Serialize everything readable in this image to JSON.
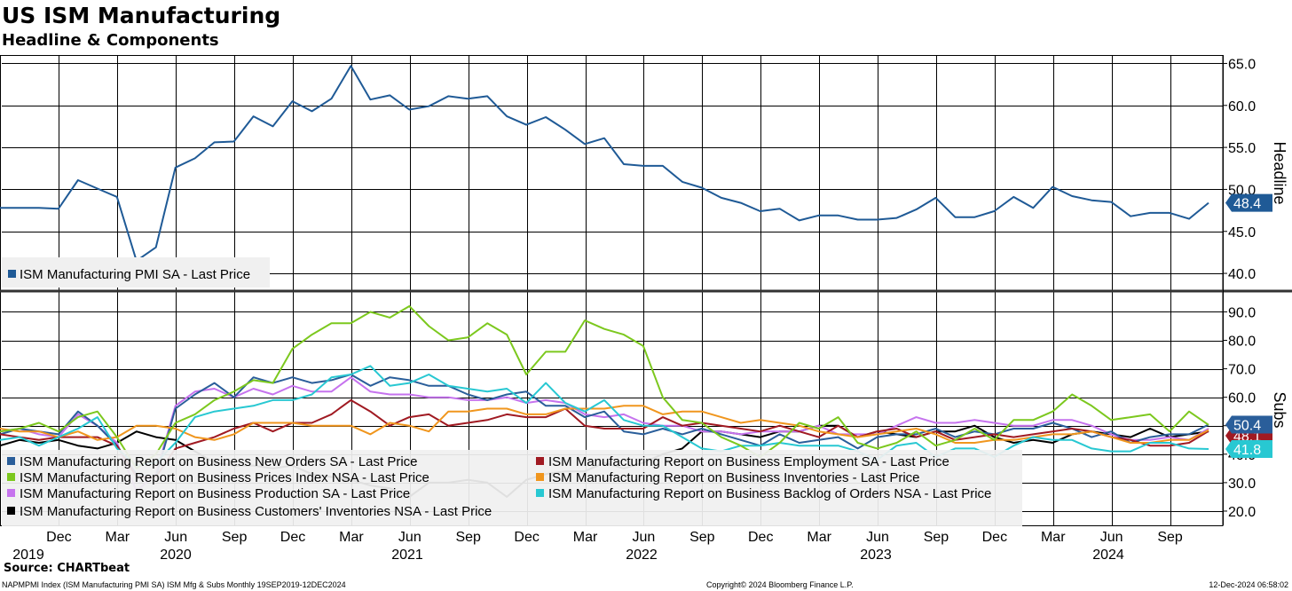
{
  "header": {
    "title": "US ISM Manufacturing",
    "subtitle": "Headline & Components"
  },
  "footer": {
    "source": "Source: CHARTbeat",
    "left_note": "NAPMPMI Index (ISM Manufacturing PMI SA) ISM Mfg & Subs  Monthly 19SEP2019-12DEC2024",
    "center_note": "Copyright© 2024 Bloomberg Finance L.P.",
    "right_note": "12-Dec-2024 06:58:02"
  },
  "colors": {
    "headline": "#1f5a96",
    "new_orders": "#2a5e9a",
    "employment": "#a01a22",
    "prices": "#7cc81e",
    "inventories": "#f0961e",
    "production": "#c673ee",
    "backlog": "#28c8d2",
    "customers_inventories": "#000000",
    "customers_inventories_old": "#777777"
  },
  "chart_data": [
    {
      "type": "line",
      "panel": "Headline",
      "axis_label": "Headline",
      "ylim": [
        38,
        66
      ],
      "y_ticks": [
        "65.0",
        "60.0",
        "55.0",
        "50.0",
        "45.0",
        "40.0"
      ],
      "last_value_label": "48.4",
      "legend": [
        "ISM Manufacturing PMI SA - Last Price"
      ],
      "series": [
        {
          "name": "ISM Manufacturing PMI SA - Last Price",
          "color_key": "headline",
          "values": [
            47.8,
            47.8,
            47.8,
            47.7,
            51.1,
            50.1,
            49.1,
            41.5,
            43.1,
            52.6,
            53.7,
            55.6,
            55.7,
            58.7,
            57.5,
            60.5,
            59.3,
            60.8,
            64.7,
            60.7,
            61.2,
            59.5,
            59.9,
            61.1,
            60.8,
            61.1,
            58.7,
            57.7,
            58.6,
            57.1,
            55.4,
            56.1,
            53.0,
            52.8,
            52.8,
            50.9,
            50.2,
            49.0,
            48.4,
            47.4,
            47.7,
            46.3,
            46.9,
            46.9,
            46.4,
            46.4,
            46.6,
            47.6,
            49.0,
            46.7,
            46.7,
            47.4,
            49.1,
            47.8,
            50.3,
            49.2,
            48.7,
            48.5,
            46.8,
            47.2,
            47.2,
            46.5,
            48.4
          ]
        }
      ]
    },
    {
      "type": "line",
      "panel": "Subs",
      "axis_label": "Subs",
      "ylim": [
        15,
        97
      ],
      "y_ticks": [
        "90.0",
        "80.0",
        "70.0",
        "60.0",
        "50.0",
        "40.0",
        "30.0",
        "20.0"
      ],
      "last_value_labels": [
        "50.4",
        "48.1",
        "41.8"
      ],
      "x_month_ticks": [
        "Dec",
        "Mar",
        "Jun",
        "Sep",
        "Dec",
        "Mar",
        "Jun",
        "Sep",
        "Dec",
        "Mar",
        "Jun",
        "Sep",
        "Dec",
        "Mar",
        "Jun",
        "Sep",
        "Dec",
        "Mar",
        "Jun",
        "Sep"
      ],
      "x_year_labels": [
        "2019",
        "2020",
        "2021",
        "2022",
        "2023",
        "2024"
      ],
      "legend": [
        "ISM Manufacturing Report on Business New Orders SA - Last Price",
        "ISM Manufacturing Report on Business Employment SA - Last Price",
        "ISM Manufacturing Report on Business Prices Index NSA - Last Price",
        "ISM Manufacturing Report on Business Inventories - Last Price",
        "ISM Manufacturing Report on Business Production SA - Last Price",
        "ISM Manufacturing Report on Business Backlog of Orders NSA - Last Price",
        "ISM Manufacturing Report on Business Customers' Inventories NSA - Last Price"
      ],
      "series": [
        {
          "name": "ISM Manufacturing Report on Business New Orders SA - Last Price",
          "color_key": "new_orders",
          "values": [
            47.0,
            49.0,
            48.0,
            47.0,
            55.0,
            50.0,
            43.0,
            33.0,
            32.0,
            56.0,
            61.0,
            65.0,
            60.0,
            67.0,
            65.0,
            67.0,
            65.0,
            66.0,
            68.0,
            64.0,
            67.0,
            66.0,
            64.0,
            64.0,
            61.0,
            59.0,
            61.0,
            62.0,
            57.0,
            57.0,
            53.0,
            55.0,
            48.0,
            47.0,
            49.0,
            47.0,
            49.0,
            47.0,
            45.0,
            43.0,
            47.0,
            44.0,
            45.0,
            46.0,
            42.0,
            46.0,
            47.0,
            47.0,
            49.0,
            46.0,
            48.0,
            47.0,
            49.0,
            49.0,
            51.0,
            49.0,
            46.0,
            48.0,
            44.0,
            46.0,
            47.0,
            47.0,
            50.4
          ]
        },
        {
          "name": "ISM Manufacturing Report on Business Employment SA - Last Price",
          "color_key": "employment",
          "values": [
            47.0,
            46.0,
            45.0,
            46.0,
            46.0,
            46.0,
            43.0,
            32.0,
            32.0,
            42.0,
            44.0,
            46.0,
            49.0,
            51.0,
            48.0,
            51.0,
            51.0,
            54.0,
            59.0,
            55.0,
            50.0,
            53.0,
            54.0,
            50.0,
            51.0,
            52.0,
            54.0,
            53.0,
            53.0,
            56.0,
            50.0,
            49.0,
            49.0,
            49.0,
            53.0,
            50.0,
            51.0,
            50.0,
            49.0,
            48.0,
            50.0,
            48.0,
            46.0,
            50.0,
            46.0,
            48.0,
            49.0,
            46.0,
            48.0,
            45.0,
            46.0,
            47.0,
            46.0,
            47.0,
            48.0,
            49.0,
            48.0,
            46.0,
            45.0,
            43.0,
            43.0,
            44.0,
            48.1
          ]
        },
        {
          "name": "ISM Manufacturing Report on Business Prices Index NSA - Last Price",
          "color_key": "prices",
          "values": [
            48.0,
            49.0,
            51.0,
            48.0,
            53.0,
            55.0,
            46.0,
            35.0,
            40.0,
            51.0,
            54.0,
            59.0,
            62.0,
            66.0,
            65.0,
            77.0,
            82.0,
            86.0,
            86.0,
            90.0,
            88.0,
            92.0,
            85.0,
            80.0,
            81.0,
            86.0,
            82.0,
            68.0,
            76.0,
            76.0,
            87.0,
            84.0,
            82.0,
            78.0,
            60.0,
            52.0,
            51.0,
            46.0,
            43.0,
            39.0,
            44.0,
            51.0,
            49.0,
            53.0,
            44.0,
            42.0,
            44.0,
            48.0,
            43.0,
            45.0,
            49.0,
            45.0,
            52.0,
            52.0,
            55.0,
            61.0,
            57.0,
            52.0,
            53.0,
            54.0,
            48.0,
            55.0,
            50.3
          ]
        },
        {
          "name": "ISM Manufacturing Report on Business Inventories - Last Price",
          "color_key": "inventories",
          "values": [
            49.0,
            48.0,
            48.0,
            46.0,
            48.0,
            45.0,
            46.0,
            50.0,
            50.0,
            49.0,
            46.0,
            45.0,
            47.0,
            51.0,
            51.0,
            51.0,
            50.0,
            50.0,
            50.0,
            47.0,
            51.0,
            50.0,
            48.0,
            55.0,
            55.0,
            56.0,
            56.0,
            54.0,
            54.0,
            56.0,
            56.0,
            56.0,
            57.0,
            57.0,
            54.0,
            55.0,
            55.0,
            53.0,
            51.0,
            52.0,
            51.0,
            50.0,
            48.0,
            47.0,
            46.0,
            47.0,
            48.0,
            49.0,
            47.0,
            44.0,
            44.0,
            45.0,
            45.0,
            46.0,
            47.0,
            47.0,
            48.0,
            46.0,
            44.0,
            44.0,
            45.0,
            45.0,
            48.5
          ]
        },
        {
          "name": "ISM Manufacturing Report on Business Production SA - Last Price",
          "color_key": "production",
          "values": [
            48.0,
            49.0,
            47.0,
            46.0,
            54.0,
            50.0,
            44.0,
            27.0,
            33.0,
            57.0,
            62.0,
            63.0,
            60.0,
            63.0,
            61.0,
            64.0,
            62.0,
            62.0,
            67.0,
            62.0,
            61.0,
            61.0,
            60.0,
            60.0,
            59.0,
            59.0,
            60.0,
            58.0,
            59.0,
            58.0,
            54.0,
            53.0,
            54.0,
            51.0,
            50.0,
            50.0,
            48.0,
            48.0,
            47.0,
            48.0,
            48.0,
            48.0,
            50.0,
            47.0,
            47.0,
            47.0,
            50.0,
            53.0,
            51.0,
            51.0,
            52.0,
            51.0,
            50.0,
            50.0,
            52.0,
            52.0,
            50.0,
            47.0,
            45.0,
            45.0,
            46.0,
            45.0,
            49.0
          ]
        },
        {
          "name": "ISM Manufacturing Report on Business Backlog of Orders NSA - Last Price",
          "color_key": "backlog",
          "values": [
            45.0,
            46.0,
            43.0,
            46.0,
            49.0,
            53.0,
            42.0,
            36.0,
            37.0,
            44.0,
            53.0,
            55.0,
            56.0,
            57.0,
            59.0,
            59.0,
            61.0,
            67.0,
            68.0,
            71.0,
            64.0,
            65.0,
            68.0,
            64.0,
            63.0,
            62.0,
            63.0,
            58.0,
            65.0,
            58.0,
            55.0,
            59.0,
            52.0,
            50.0,
            50.0,
            46.0,
            42.0,
            41.0,
            43.0,
            43.0,
            44.0,
            43.0,
            43.0,
            43.0,
            41.0,
            38.0,
            43.0,
            44.0,
            39.0,
            42.0,
            42.0,
            39.0,
            43.0,
            46.0,
            45.0,
            45.0,
            42.0,
            41.0,
            41.0,
            44.0,
            44.0,
            42.0,
            41.8
          ]
        },
        {
          "name": "ISM Manufacturing Report on Business Customers' Inventories NSA - Last Price",
          "color_key": "customers_inventories",
          "values": [
            43.0,
            45.0,
            44.0,
            45.0,
            43.0,
            42.0,
            44.0,
            48.0,
            46.0,
            45.0,
            41.0,
            37.0,
            36.0,
            36.0,
            35.0,
            36.0,
            33.0,
            32.0,
            31.0,
            29.0,
            28.0,
            25.0,
            30.0,
            30.0,
            31.0,
            30.0,
            25.0,
            31.0,
            33.0,
            34.0,
            34.0,
            37.0,
            35.0,
            37.0,
            40.0,
            42.0,
            48.0,
            48.0,
            47.0,
            46.0,
            48.0,
            48.0,
            50.0,
            50.0,
            46.0,
            48.0,
            47.0,
            46.0,
            48.0,
            48.0,
            50.0,
            46.0,
            44.0,
            45.0,
            44.0,
            47.0,
            48.0,
            47.0,
            46.0,
            49.0,
            46.0,
            47.0,
            48.0
          ]
        }
      ]
    }
  ]
}
